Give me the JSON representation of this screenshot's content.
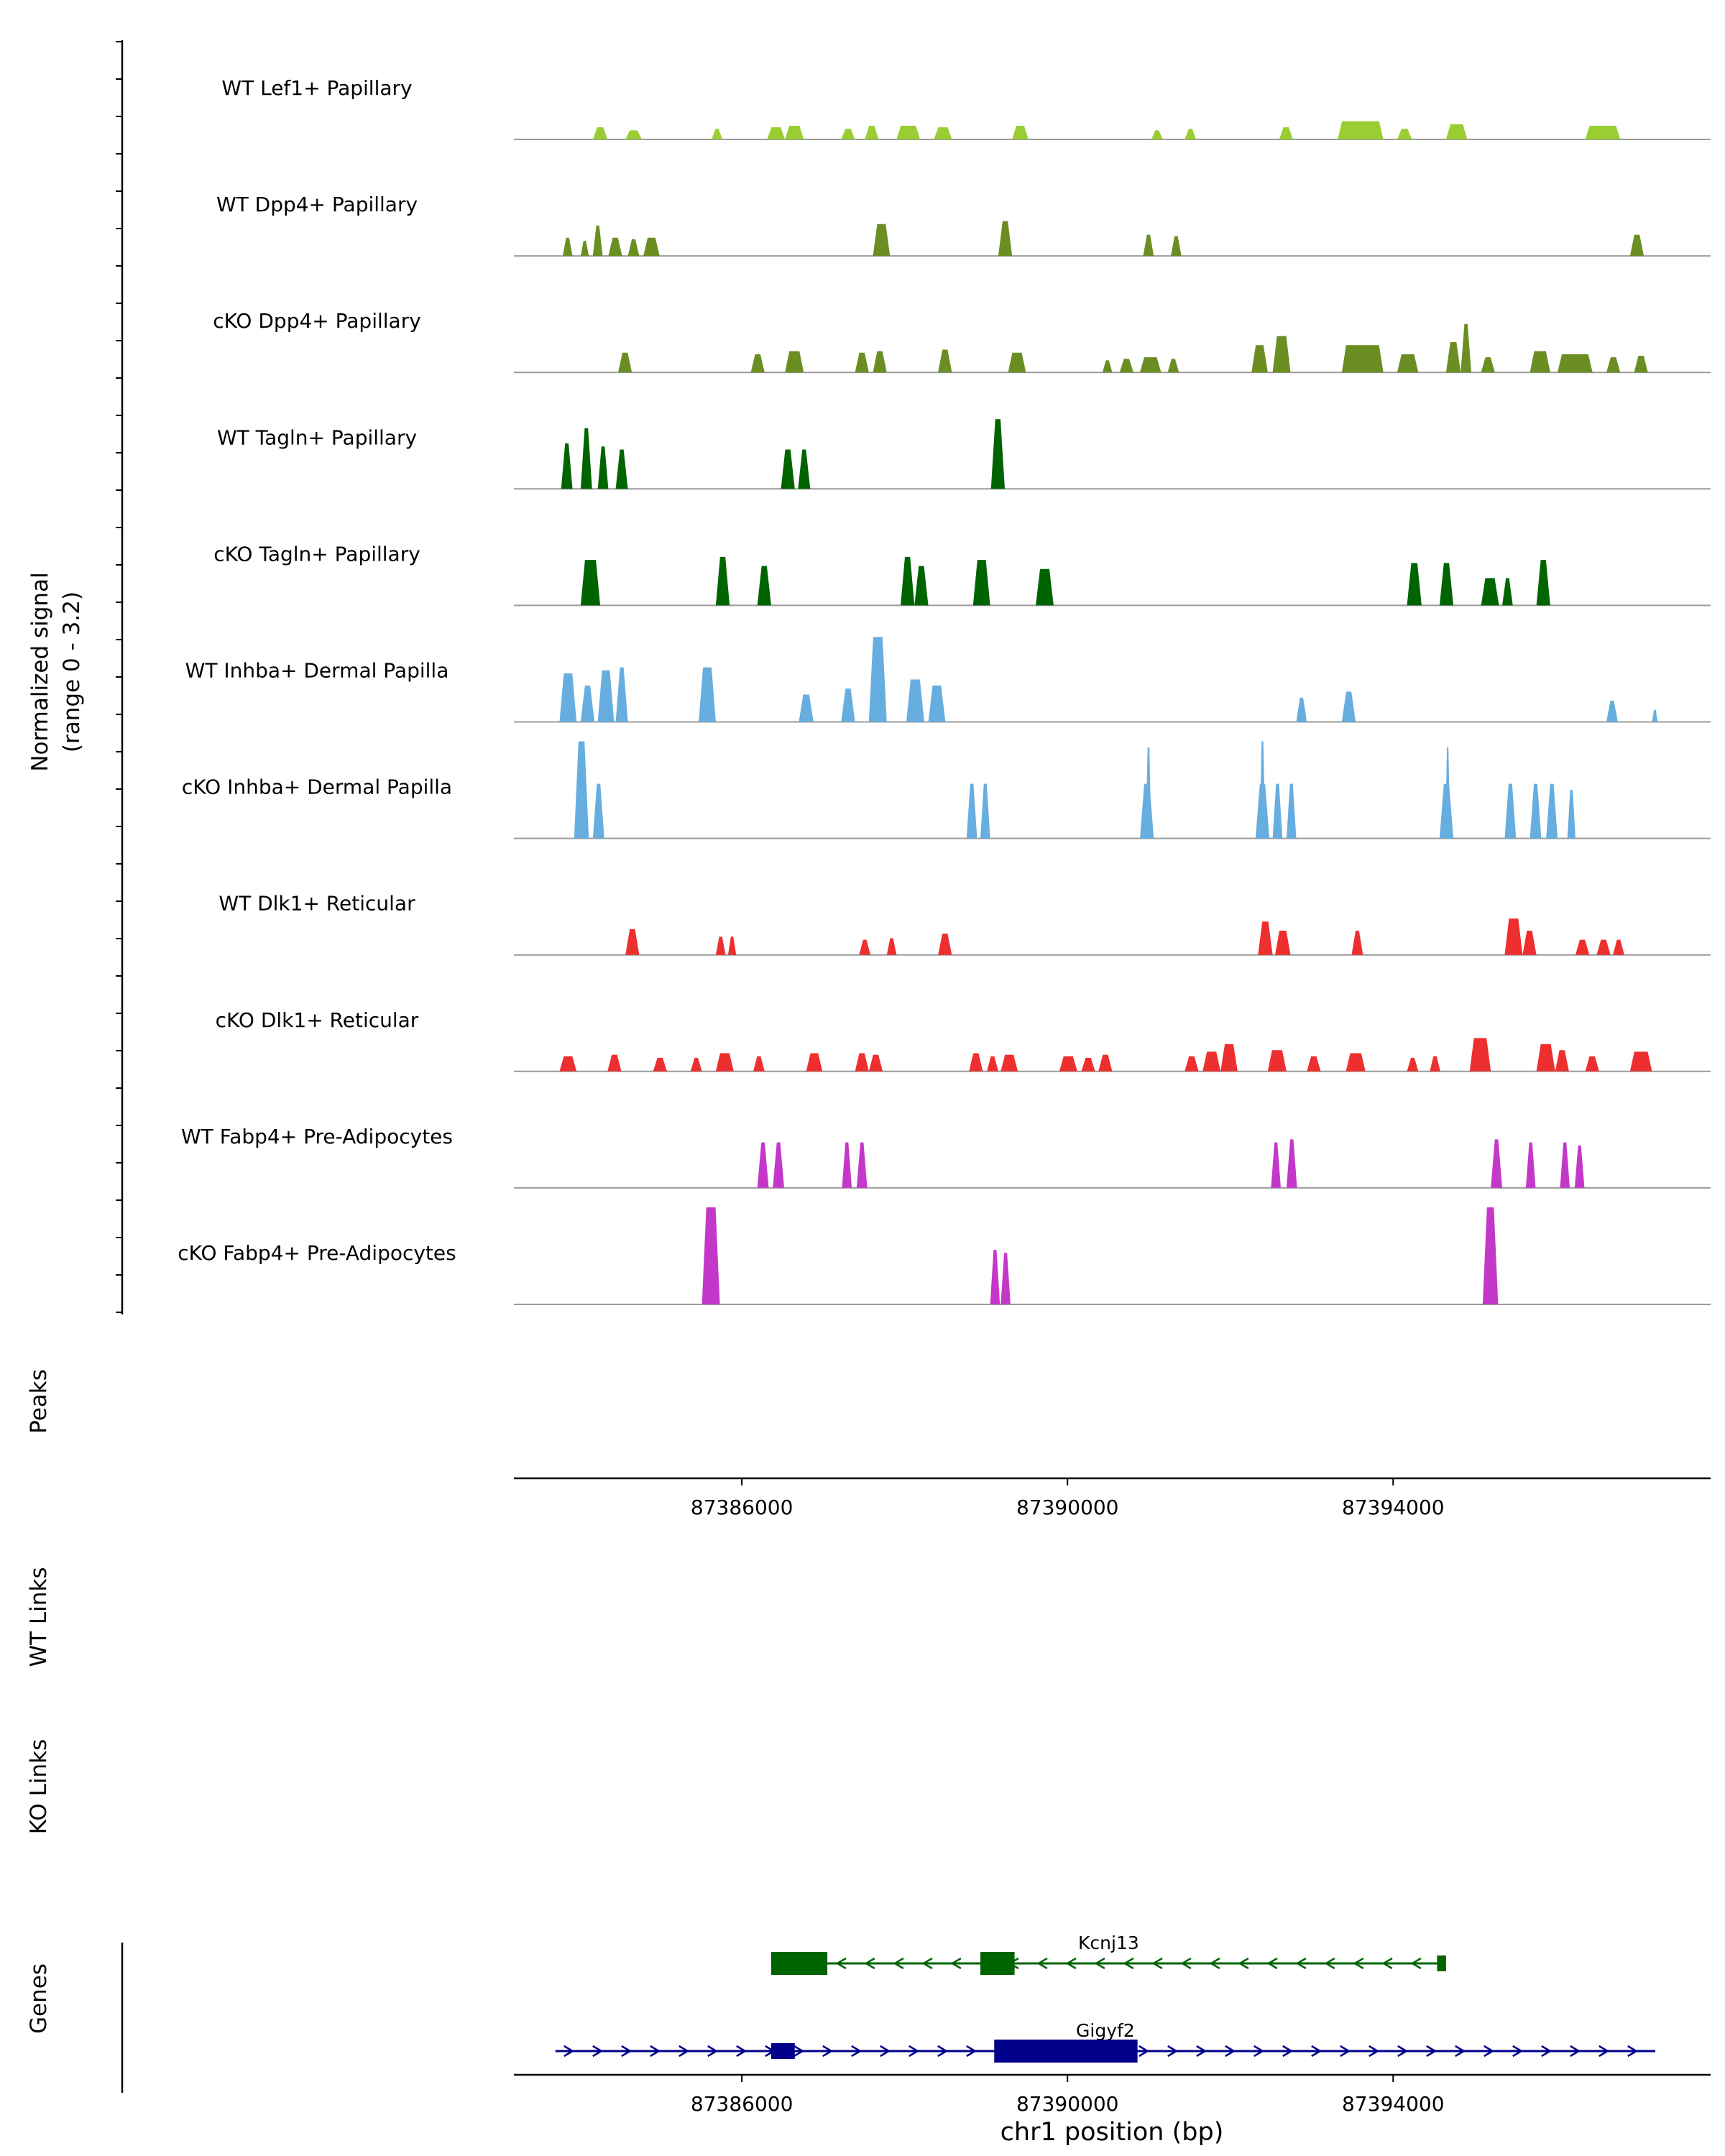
{
  "figure": {
    "y_axis_label_line1": "Normalized signal",
    "y_axis_label_line2": "(range 0 - 3.2)",
    "sections": {
      "peaks": "Peaks",
      "wt_links": "WT Links",
      "ko_links": "KO Links",
      "genes": "Genes"
    },
    "x_axis_title": "chr1 position (bp)"
  },
  "chart_data": {
    "type": "area",
    "description": "Genome browser normalized signal tracks over chr1 with gene models",
    "region": {
      "chrom": "chr1",
      "start": 87383200,
      "end": 87397900
    },
    "signal_range": [
      0,
      3.2
    ],
    "x_ticks": [
      87386000,
      87390000,
      87394000
    ],
    "x_tick_labels": [
      "87386000",
      "87390000",
      "87394000"
    ],
    "tracks": [
      {
        "name": "WT Lef1+ Papillary",
        "color": "#9acd32",
        "peaks": [
          [
            87384170,
            87384350,
            0.4
          ],
          [
            87384570,
            87384770,
            0.3
          ],
          [
            87385630,
            87385760,
            0.35
          ],
          [
            87386310,
            87386530,
            0.4
          ],
          [
            87386530,
            87386760,
            0.45
          ],
          [
            87387220,
            87387390,
            0.35
          ],
          [
            87387510,
            87387680,
            0.45
          ],
          [
            87387900,
            87388190,
            0.45
          ],
          [
            87388360,
            87388580,
            0.4
          ],
          [
            87389320,
            87389520,
            0.45
          ],
          [
            87391030,
            87391170,
            0.3
          ],
          [
            87391440,
            87391580,
            0.35
          ],
          [
            87392600,
            87392770,
            0.4
          ],
          [
            87393320,
            87393880,
            0.6
          ],
          [
            87394050,
            87394230,
            0.35
          ],
          [
            87394650,
            87394910,
            0.5
          ],
          [
            87396360,
            87396790,
            0.45
          ]
        ]
      },
      {
        "name": "WT Dpp4+ Papillary",
        "color": "#6b8e23",
        "peaks": [
          [
            87383800,
            87383920,
            0.6
          ],
          [
            87384020,
            87384120,
            0.5
          ],
          [
            87384170,
            87384290,
            1.0
          ],
          [
            87384360,
            87384530,
            0.6
          ],
          [
            87384600,
            87384740,
            0.55
          ],
          [
            87384790,
            87384990,
            0.6
          ],
          [
            87387610,
            87387820,
            1.05
          ],
          [
            87389150,
            87389320,
            1.15
          ],
          [
            87390930,
            87391060,
            0.7
          ],
          [
            87391270,
            87391400,
            0.65
          ],
          [
            87396910,
            87397080,
            0.7
          ]
        ]
      },
      {
        "name": "cKO Dpp4+ Papillary",
        "color": "#6b8e23",
        "peaks": [
          [
            87384480,
            87384650,
            0.65
          ],
          [
            87386110,
            87386280,
            0.6
          ],
          [
            87386530,
            87386760,
            0.7
          ],
          [
            87387390,
            87387560,
            0.65
          ],
          [
            87387610,
            87387780,
            0.7
          ],
          [
            87388410,
            87388580,
            0.75
          ],
          [
            87389270,
            87389490,
            0.65
          ],
          [
            87390430,
            87390550,
            0.4
          ],
          [
            87390640,
            87390810,
            0.45
          ],
          [
            87390890,
            87391150,
            0.5
          ],
          [
            87391230,
            87391370,
            0.45
          ],
          [
            87392260,
            87392460,
            0.9
          ],
          [
            87392520,
            87392740,
            1.2
          ],
          [
            87393370,
            87393880,
            0.9
          ],
          [
            87394050,
            87394310,
            0.6
          ],
          [
            87394650,
            87394830,
            1.0
          ],
          [
            87394830,
            87394960,
            1.6
          ],
          [
            87395080,
            87395250,
            0.5
          ],
          [
            87395680,
            87395930,
            0.7
          ],
          [
            87396020,
            87396450,
            0.6
          ],
          [
            87396620,
            87396790,
            0.5
          ],
          [
            87396960,
            87397130,
            0.55
          ]
        ]
      },
      {
        "name": "WT Tagln+ Papillary",
        "color": "#006400",
        "peaks": [
          [
            87383780,
            87383920,
            1.5
          ],
          [
            87384020,
            87384160,
            2.0
          ],
          [
            87384230,
            87384360,
            1.4
          ],
          [
            87384450,
            87384600,
            1.3
          ],
          [
            87386480,
            87386650,
            1.3
          ],
          [
            87386690,
            87386840,
            1.3
          ],
          [
            87389060,
            87389230,
            2.3
          ]
        ]
      },
      {
        "name": "cKO Tagln+ Papillary",
        "color": "#006400",
        "peaks": [
          [
            87384020,
            87384260,
            1.5
          ],
          [
            87385680,
            87385850,
            1.6
          ],
          [
            87386190,
            87386360,
            1.3
          ],
          [
            87387950,
            87388120,
            1.6
          ],
          [
            87388120,
            87388290,
            1.3
          ],
          [
            87388840,
            87389050,
            1.5
          ],
          [
            87389610,
            87389830,
            1.2
          ],
          [
            87394170,
            87394350,
            1.4
          ],
          [
            87394570,
            87394740,
            1.4
          ],
          [
            87395080,
            87395300,
            0.9
          ],
          [
            87395340,
            87395470,
            0.9
          ],
          [
            87395760,
            87395930,
            1.5
          ]
        ]
      },
      {
        "name": "WT Inhba+ Dermal Papilla",
        "color": "#66ade0",
        "peaks": [
          [
            87383760,
            87383970,
            1.6
          ],
          [
            87384020,
            87384190,
            1.2
          ],
          [
            87384230,
            87384430,
            1.7
          ],
          [
            87384450,
            87384600,
            1.8
          ],
          [
            87385470,
            87385680,
            1.8
          ],
          [
            87386700,
            87386880,
            0.9
          ],
          [
            87387220,
            87387390,
            1.1
          ],
          [
            87387560,
            87387780,
            2.8
          ],
          [
            87388020,
            87388240,
            1.4
          ],
          [
            87388290,
            87388500,
            1.2
          ],
          [
            87392810,
            87392940,
            0.8
          ],
          [
            87393370,
            87393540,
            1.0
          ],
          [
            87396620,
            87396760,
            0.7
          ],
          [
            87397180,
            87397250,
            0.4
          ]
        ]
      },
      {
        "name": "cKO Inhba+ Dermal Papilla",
        "color": "#66ade0",
        "peaks": [
          [
            87383940,
            87384120,
            3.2
          ],
          [
            87384170,
            87384310,
            1.8
          ],
          [
            87388760,
            87388890,
            1.8
          ],
          [
            87388930,
            87389050,
            1.8
          ],
          [
            87390890,
            87391060,
            1.8
          ],
          [
            87390960,
            87391030,
            3.0
          ],
          [
            87392310,
            87392480,
            1.8
          ],
          [
            87392360,
            87392430,
            3.2
          ],
          [
            87392520,
            87392640,
            1.8
          ],
          [
            87392690,
            87392810,
            1.8
          ],
          [
            87394570,
            87394740,
            1.8
          ],
          [
            87394640,
            87394700,
            3.0
          ],
          [
            87395370,
            87395510,
            1.8
          ],
          [
            87395680,
            87395820,
            1.8
          ],
          [
            87395880,
            87396020,
            1.8
          ],
          [
            87396140,
            87396240,
            1.6
          ]
        ]
      },
      {
        "name": "WT Dlk1+ Reticular",
        "color": "#ee2f2f",
        "peaks": [
          [
            87384570,
            87384740,
            0.85
          ],
          [
            87385680,
            87385800,
            0.6
          ],
          [
            87385830,
            87385930,
            0.6
          ],
          [
            87387440,
            87387580,
            0.5
          ],
          [
            87387780,
            87387900,
            0.55
          ],
          [
            87388410,
            87388580,
            0.7
          ],
          [
            87392340,
            87392520,
            1.1
          ],
          [
            87392550,
            87392740,
            0.8
          ],
          [
            87393490,
            87393630,
            0.8
          ],
          [
            87395370,
            87395590,
            1.2
          ],
          [
            87395590,
            87395760,
            0.8
          ],
          [
            87396240,
            87396410,
            0.5
          ],
          [
            87396500,
            87396670,
            0.5
          ],
          [
            87396700,
            87396840,
            0.5
          ]
        ]
      },
      {
        "name": "cKO Dlk1+ Reticular",
        "color": "#ee2f2f",
        "peaks": [
          [
            87383760,
            87383970,
            0.5
          ],
          [
            87384350,
            87384520,
            0.55
          ],
          [
            87384910,
            87385080,
            0.45
          ],
          [
            87385370,
            87385510,
            0.45
          ],
          [
            87385680,
            87385900,
            0.6
          ],
          [
            87386140,
            87386280,
            0.5
          ],
          [
            87386790,
            87386990,
            0.6
          ],
          [
            87387390,
            87387560,
            0.6
          ],
          [
            87387560,
            87387730,
            0.55
          ],
          [
            87388790,
            87388960,
            0.6
          ],
          [
            87389010,
            87389150,
            0.5
          ],
          [
            87389180,
            87389390,
            0.55
          ],
          [
            87389900,
            87390120,
            0.5
          ],
          [
            87390170,
            87390340,
            0.45
          ],
          [
            87390380,
            87390550,
            0.55
          ],
          [
            87391440,
            87391610,
            0.5
          ],
          [
            87391660,
            87391880,
            0.65
          ],
          [
            87391880,
            87392090,
            0.9
          ],
          [
            87392460,
            87392690,
            0.7
          ],
          [
            87392940,
            87393110,
            0.5
          ],
          [
            87393420,
            87393660,
            0.6
          ],
          [
            87394170,
            87394310,
            0.45
          ],
          [
            87394450,
            87394580,
            0.5
          ],
          [
            87394940,
            87395200,
            1.1
          ],
          [
            87395760,
            87395990,
            0.9
          ],
          [
            87395990,
            87396160,
            0.7
          ],
          [
            87396360,
            87396530,
            0.5
          ],
          [
            87396910,
            87397180,
            0.65
          ]
        ]
      },
      {
        "name": "WT Fabp4+ Pre-Adipocytes",
        "color": "#c438c9",
        "peaks": [
          [
            87386190,
            87386330,
            1.5
          ],
          [
            87386380,
            87386520,
            1.5
          ],
          [
            87387230,
            87387350,
            1.5
          ],
          [
            87387410,
            87387540,
            1.5
          ],
          [
            87392500,
            87392620,
            1.5
          ],
          [
            87392690,
            87392820,
            1.6
          ],
          [
            87395200,
            87395340,
            1.6
          ],
          [
            87395630,
            87395750,
            1.5
          ],
          [
            87396050,
            87396170,
            1.5
          ],
          [
            87396230,
            87396350,
            1.4
          ]
        ]
      },
      {
        "name": "cKO Fabp4+ Pre-Adipocytes",
        "color": "#c438c9",
        "peaks": [
          [
            87385510,
            87385730,
            3.2
          ],
          [
            87389050,
            87389170,
            1.8
          ],
          [
            87389180,
            87389300,
            1.7
          ],
          [
            87395100,
            87395290,
            3.2
          ]
        ]
      }
    ],
    "genes": [
      {
        "name": "Kcnj13",
        "color": "#006400",
        "strand": "-",
        "start": 87386360,
        "end": 87394650,
        "exons": [
          [
            87386360,
            87387050,
            "thick"
          ],
          [
            87388930,
            87389350,
            "thick"
          ],
          [
            87394540,
            87394650,
            "thin"
          ]
        ]
      },
      {
        "name": "Gigyf2",
        "color": "#00008b",
        "strand": "+",
        "start": 87383710,
        "end": 87397220,
        "exons": [
          [
            87386360,
            87386650,
            "thin"
          ],
          [
            87389100,
            87390860,
            "thick"
          ]
        ]
      }
    ]
  }
}
